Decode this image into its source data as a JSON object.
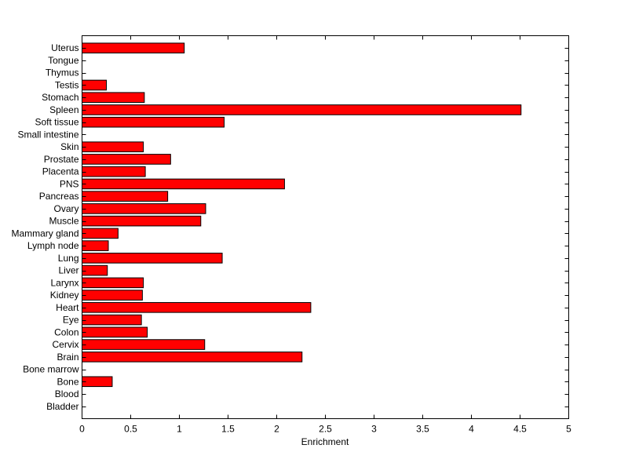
{
  "chart_data": {
    "type": "bar",
    "orientation": "horizontal",
    "title": "",
    "xlabel": "Enrichment",
    "ylabel": "",
    "xlim": [
      0,
      5
    ],
    "xticks": [
      "0",
      "0.5",
      "1",
      "1.5",
      "2",
      "2.5",
      "3",
      "3.5",
      "4",
      "4.5",
      "5"
    ],
    "grid": false,
    "bar_color": "#ff0000",
    "categories": [
      "Bladder",
      "Blood",
      "Bone",
      "Bone marrow",
      "Brain",
      "Cervix",
      "Colon",
      "Eye",
      "Heart",
      "Kidney",
      "Larynx",
      "Liver",
      "Lung",
      "Lymph node",
      "Mammary gland",
      "Muscle",
      "Ovary",
      "Pancreas",
      "PNS",
      "Placenta",
      "Prostate",
      "Skin",
      "Small intestine",
      "Soft tissue",
      "Spleen",
      "Stomach",
      "Testis",
      "Thymus",
      "Tongue",
      "Uterus"
    ],
    "values": [
      0,
      0,
      0.31,
      0,
      2.26,
      1.26,
      0.67,
      0.61,
      2.35,
      0.62,
      0.63,
      0.26,
      1.44,
      0.27,
      0.37,
      1.22,
      1.27,
      0.88,
      2.08,
      0.65,
      0.91,
      0.63,
      0,
      1.46,
      4.51,
      0.64,
      0.25,
      0,
      0,
      1.05
    ]
  }
}
